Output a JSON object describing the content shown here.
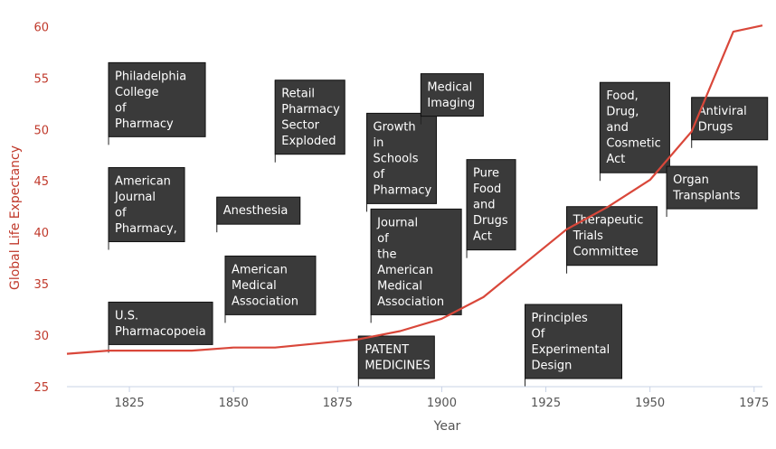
{
  "chart_data": {
    "type": "line",
    "xlabel": "Year",
    "ylabel": "Global Life Expectancy",
    "xlim": [
      1810,
      1977
    ],
    "ylim": [
      25,
      61
    ],
    "x_ticks": [
      1825,
      1850,
      1875,
      1900,
      1925,
      1950,
      1975
    ],
    "y_ticks": [
      25,
      30,
      35,
      40,
      45,
      50,
      55,
      60
    ],
    "grid": false,
    "line_color": "#d9473a",
    "flag_color": "#3a3a3a",
    "series": [
      {
        "x": [
          1810,
          1820,
          1830,
          1840,
          1850,
          1860,
          1870,
          1880,
          1890,
          1900,
          1910,
          1920,
          1930,
          1940,
          1950,
          1960,
          1970,
          1977
        ],
        "values": [
          28.2,
          28.5,
          28.5,
          28.5,
          28.8,
          28.8,
          29.2,
          29.6,
          30.4,
          31.6,
          33.7,
          37.0,
          40.3,
          42.5,
          45.1,
          49.8,
          59.5,
          60.1
        ]
      }
    ],
    "annotations": [
      {
        "year": 1820,
        "y": 48.5,
        "lines": [
          "Philadelphia",
          "College",
          "of",
          "Pharmacy"
        ]
      },
      {
        "year": 1820,
        "y": 38.3,
        "lines": [
          "American",
          "Journal",
          "of",
          "Pharmacy,"
        ]
      },
      {
        "year": 1820,
        "y": 28.3,
        "lines": [
          "U.S.",
          "Pharmacopoeia"
        ]
      },
      {
        "year": 1846,
        "y": 40.0,
        "lines": [
          "Anesthesia"
        ]
      },
      {
        "year": 1848,
        "y": 31.2,
        "lines": [
          "American",
          "Medical",
          "Association"
        ]
      },
      {
        "year": 1860,
        "y": 46.8,
        "lines": [
          "Retail",
          "Pharmacy",
          "Sector",
          "Exploded"
        ]
      },
      {
        "year": 1882,
        "y": 42.0,
        "lines": [
          "Growth",
          "in",
          "Schools",
          "of",
          "Pharmacy"
        ]
      },
      {
        "year": 1883,
        "y": 31.2,
        "lines": [
          "Journal",
          "of",
          "the",
          "American",
          "Medical",
          "Association"
        ]
      },
      {
        "year": 1880,
        "y": 25.0,
        "lines": [
          "PATENT",
          "MEDICINES"
        ]
      },
      {
        "year": 1895,
        "y": 50.5,
        "lines": [
          "Medical",
          "Imaging"
        ]
      },
      {
        "year": 1906,
        "y": 37.5,
        "lines": [
          "Pure",
          "Food",
          "and",
          "Drugs",
          "Act"
        ]
      },
      {
        "year": 1920,
        "y": 25.0,
        "lines": [
          "Principles",
          "Of",
          "Experimental",
          "Design"
        ]
      },
      {
        "year": 1930,
        "y": 36.0,
        "lines": [
          "Therapeutic",
          "Trials",
          "Committee"
        ]
      },
      {
        "year": 1938,
        "y": 45.0,
        "lines": [
          "Food,",
          "Drug,",
          "and",
          "Cosmetic",
          "Act"
        ]
      },
      {
        "year": 1954,
        "y": 41.5,
        "lines": [
          "Organ",
          "Transplants"
        ]
      },
      {
        "year": 1960,
        "y": 48.2,
        "lines": [
          "Antiviral",
          "Drugs"
        ]
      }
    ]
  }
}
